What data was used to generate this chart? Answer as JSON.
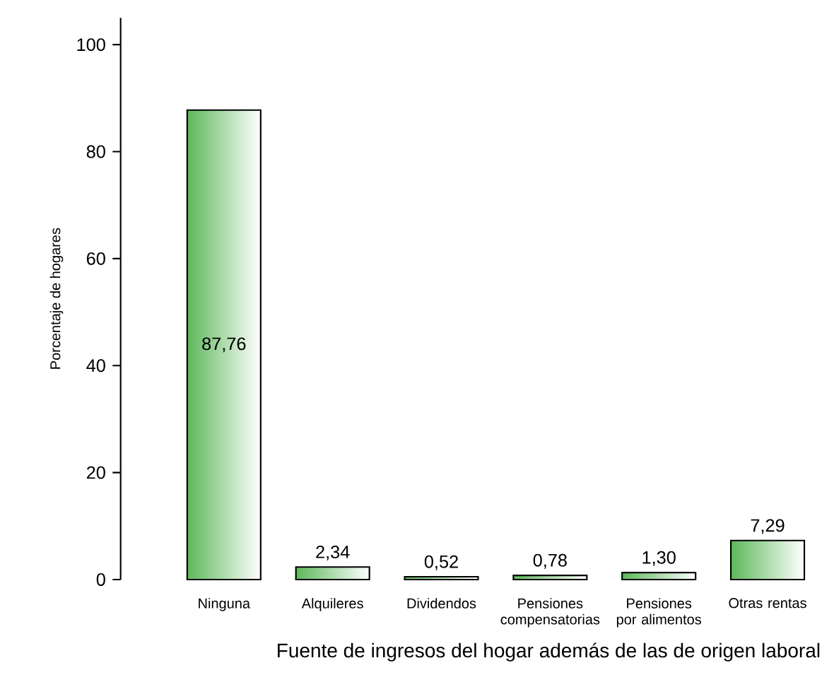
{
  "chart_data": {
    "type": "bar",
    "xlabel": "Fuente de ingresos del hogar además de las de origen laboral",
    "ylabel": "Porcentaje de hogares",
    "categories": [
      "Ninguna",
      "Alquileres",
      "Dividendos",
      "Pensiones compensatorias",
      "Pensiones por alimentos",
      "Otras rentas"
    ],
    "values": [
      87.76,
      2.34,
      0.52,
      0.78,
      1.3,
      7.29
    ],
    "value_labels": [
      "87,76",
      "2,34",
      "0,52",
      "0,78",
      "1,30",
      "7,29"
    ],
    "color": "#5cb85a",
    "ylim": [
      0,
      105
    ],
    "yticks": [
      0,
      20,
      40,
      60,
      80,
      100
    ],
    "grid": false
  }
}
